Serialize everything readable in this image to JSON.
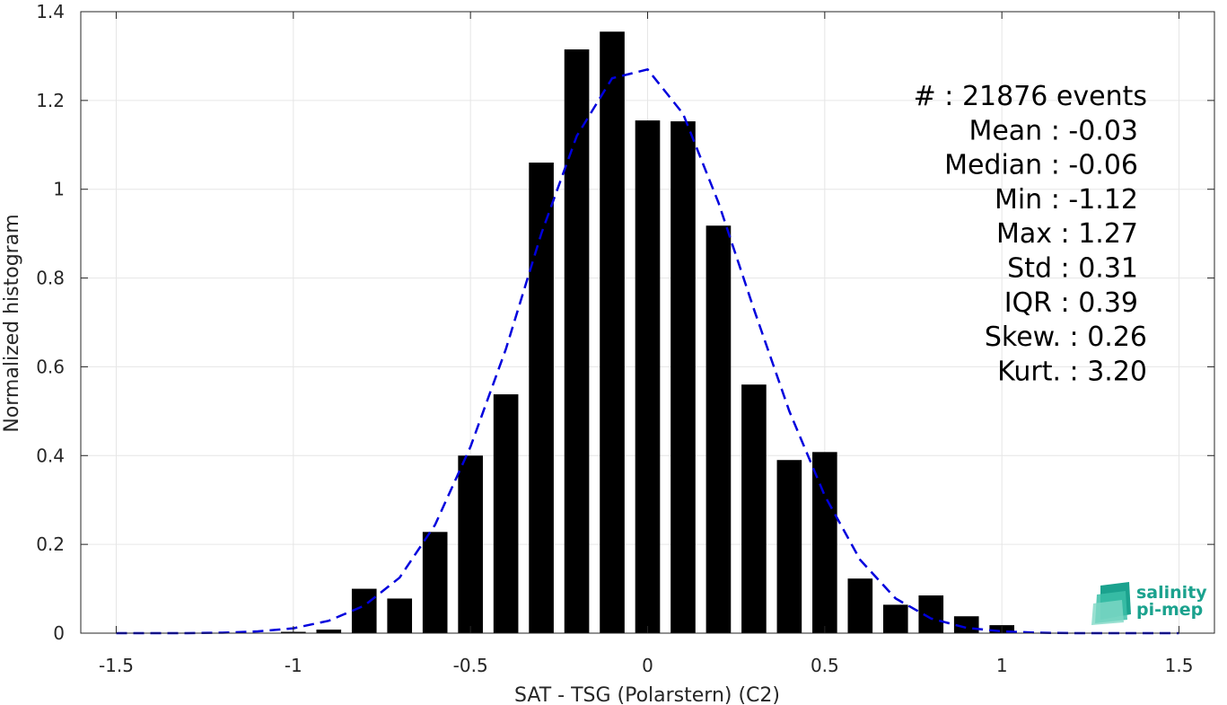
{
  "chart_data": {
    "type": "bar",
    "xlabel": "SAT - TSG (Polarstern) (C2)",
    "ylabel": "Normalized histogram",
    "xlim": [
      -1.6,
      1.6
    ],
    "ylim": [
      0,
      1.4
    ],
    "xticks": [
      -1.5,
      -1,
      -0.5,
      0,
      0.5,
      1,
      1.5
    ],
    "xtick_labels": [
      "-1.5",
      "-1",
      "-0.5",
      "0",
      "0.5",
      "1",
      "1.5"
    ],
    "yticks": [
      0,
      0.2,
      0.4,
      0.6,
      0.8,
      1,
      1.2,
      1.4
    ],
    "ytick_labels": [
      "0",
      "0.2",
      "0.4",
      "0.6",
      "0.8",
      "1",
      "1.2",
      "1.4"
    ],
    "grid": true,
    "bar_width": 0.07,
    "bars": {
      "x": [
        -1.0,
        -0.9,
        -0.8,
        -0.7,
        -0.6,
        -0.5,
        -0.4,
        -0.3,
        -0.2,
        -0.1,
        0.0,
        0.1,
        0.2,
        0.3,
        0.4,
        0.5,
        0.6,
        0.7,
        0.8,
        0.9,
        1.0
      ],
      "values": [
        0.003,
        0.008,
        0.1,
        0.078,
        0.228,
        0.4,
        0.538,
        1.06,
        1.315,
        1.355,
        1.155,
        1.153,
        0.918,
        0.56,
        0.39,
        0.408,
        0.123,
        0.064,
        0.085,
        0.038,
        0.018
      ],
      "color": "#000000"
    },
    "fit_curve": {
      "style": "dashed",
      "color": "#0000dd",
      "x": [
        -1.5,
        -1.4,
        -1.3,
        -1.2,
        -1.1,
        -1.0,
        -0.9,
        -0.8,
        -0.7,
        -0.6,
        -0.5,
        -0.4,
        -0.3,
        -0.2,
        -0.1,
        0.0,
        0.1,
        0.2,
        0.3,
        0.4,
        0.5,
        0.6,
        0.7,
        0.8,
        0.9,
        1.0,
        1.1,
        1.2,
        1.3,
        1.4,
        1.5
      ],
      "y": [
        0.0,
        0.0,
        0.0,
        0.001,
        0.004,
        0.011,
        0.028,
        0.062,
        0.125,
        0.244,
        0.42,
        0.64,
        0.9,
        1.12,
        1.25,
        1.27,
        1.17,
        0.97,
        0.73,
        0.5,
        0.31,
        0.165,
        0.078,
        0.033,
        0.012,
        0.004,
        0.001,
        0.0,
        0.0,
        0.0,
        0.0
      ]
    },
    "stats": [
      {
        "key": "#",
        "value": ": 21876 events"
      },
      {
        "key": "Mean",
        "value": ": -0.03"
      },
      {
        "key": "Median",
        "value": ": -0.06"
      },
      {
        "key": "Min",
        "value": ": -1.12"
      },
      {
        "key": "Max",
        "value": ": 1.27"
      },
      {
        "key": "Std",
        "value": ": 0.31"
      },
      {
        "key": "IQR",
        "value": ": 0.39"
      },
      {
        "key": "Skew.",
        "value": ": 0.26"
      },
      {
        "key": "Kurt.",
        "value": ": 3.20"
      }
    ]
  },
  "logo": {
    "line1": "salinity",
    "line2": "pi-mep",
    "color": "#1ba28e"
  }
}
